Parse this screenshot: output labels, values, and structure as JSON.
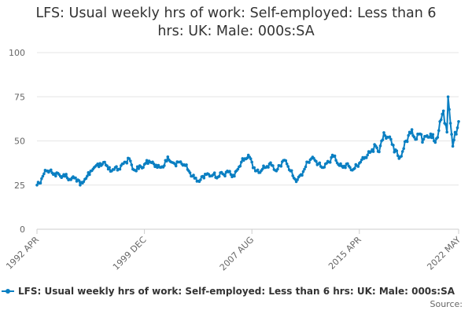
{
  "title_line1": "LFS: Usual weekly hrs of work: Self-employed: Less than 6",
  "title_line2": "hrs: UK: Male: 000s:SA",
  "source_label": "Source:",
  "colors": {
    "series": "#0a7fc2",
    "grid": "#e6e6e6",
    "axis_text": "#666666"
  },
  "chart_data": {
    "type": "line",
    "title": "LFS: Usual weekly hrs of work: Self-employed: Less than 6 hrs: UK: Male: 000s:SA",
    "xlabel": "",
    "ylabel": "",
    "ylim": [
      0,
      100
    ],
    "y_ticks": [
      0,
      25,
      50,
      75,
      100
    ],
    "x_tick_labels": [
      "1992 APR",
      "1999 DEC",
      "2007 AUG",
      "2015 APR",
      "2022 MAY"
    ],
    "grid": true,
    "legend_position": "bottom",
    "series": [
      {
        "name": "LFS: Usual weekly hrs of work: Self-employed: Less than 6 hrs: UK: Male: 000s:SA",
        "x_start": "1992 APR",
        "x_end": "2022 MAY",
        "frequency": "monthly",
        "anchors": [
          [
            "1992 APR",
            25
          ],
          [
            "1992 JUN",
            26
          ],
          [
            "1992 SEP",
            30
          ],
          [
            "1992 DEC",
            33
          ],
          [
            "1993 MAR",
            33
          ],
          [
            "1993 JUN",
            31
          ],
          [
            "1993 SEP",
            32
          ],
          [
            "1993 DEC",
            30
          ],
          [
            "1994 MAR",
            31
          ],
          [
            "1994 JUN",
            29
          ],
          [
            "1994 SEP",
            28
          ],
          [
            "1994 DEC",
            29
          ],
          [
            "1995 MAR",
            28
          ],
          [
            "1995 MAY",
            25
          ],
          [
            "1995 AUG",
            27
          ],
          [
            "1995 NOV",
            30
          ],
          [
            "1996 FEB",
            33
          ],
          [
            "1996 MAY",
            35
          ],
          [
            "1996 AUG",
            37
          ],
          [
            "1996 NOV",
            36
          ],
          [
            "1997 FEB",
            38
          ],
          [
            "1997 MAY",
            34
          ],
          [
            "1997 AUG",
            33
          ],
          [
            "1997 NOV",
            35
          ],
          [
            "1998 FEB",
            34
          ],
          [
            "1998 MAY",
            37
          ],
          [
            "1998 AUG",
            38
          ],
          [
            "1998 NOV",
            40
          ],
          [
            "1999 FEB",
            34
          ],
          [
            "1999 MAY",
            33
          ],
          [
            "1999 AUG",
            36
          ],
          [
            "1999 NOV",
            35
          ],
          [
            "2000 FEB",
            39
          ],
          [
            "2000 MAY",
            38
          ],
          [
            "2000 AUG",
            37
          ],
          [
            "2000 NOV",
            35
          ],
          [
            "2001 FEB",
            35
          ],
          [
            "2001 MAY",
            36
          ],
          [
            "2001 AUG",
            41
          ],
          [
            "2001 NOV",
            38
          ],
          [
            "2002 FEB",
            37
          ],
          [
            "2002 MAY",
            38
          ],
          [
            "2002 AUG",
            37
          ],
          [
            "2002 NOV",
            36
          ],
          [
            "2003 FEB",
            33
          ],
          [
            "2003 MAY",
            30
          ],
          [
            "2003 AUG",
            29
          ],
          [
            "2003 NOV",
            27
          ],
          [
            "2004 FEB",
            30
          ],
          [
            "2004 MAY",
            31
          ],
          [
            "2004 AUG",
            30
          ],
          [
            "2004 NOV",
            31
          ],
          [
            "2005 FEB",
            29
          ],
          [
            "2005 MAY",
            32
          ],
          [
            "2005 AUG",
            31
          ],
          [
            "2005 NOV",
            33
          ],
          [
            "2006 FEB",
            31
          ],
          [
            "2006 MAY",
            30
          ],
          [
            "2006 AUG",
            34
          ],
          [
            "2006 NOV",
            38
          ],
          [
            "2007 FEB",
            40
          ],
          [
            "2007 MAY",
            42
          ],
          [
            "2007 AUG",
            38
          ],
          [
            "2007 NOV",
            33
          ],
          [
            "2008 FEB",
            32
          ],
          [
            "2008 MAY",
            34
          ],
          [
            "2008 AUG",
            35
          ],
          [
            "2008 NOV",
            37
          ],
          [
            "2009 FEB",
            36
          ],
          [
            "2009 MAY",
            33
          ],
          [
            "2009 AUG",
            36
          ],
          [
            "2009 NOV",
            39
          ],
          [
            "2010 FEB",
            37
          ],
          [
            "2010 MAY",
            33
          ],
          [
            "2010 AUG",
            29
          ],
          [
            "2010 NOV",
            28
          ],
          [
            "2011 FEB",
            31
          ],
          [
            "2011 MAY",
            34
          ],
          [
            "2011 AUG",
            38
          ],
          [
            "2011 NOV",
            40
          ],
          [
            "2012 FEB",
            39
          ],
          [
            "2012 MAY",
            37
          ],
          [
            "2012 AUG",
            35
          ],
          [
            "2012 NOV",
            37
          ],
          [
            "2013 FEB",
            38
          ],
          [
            "2013 MAY",
            42
          ],
          [
            "2013 AUG",
            39
          ],
          [
            "2013 NOV",
            36
          ],
          [
            "2014 FEB",
            35
          ],
          [
            "2014 MAY",
            37
          ],
          [
            "2014 AUG",
            35
          ],
          [
            "2014 NOV",
            34
          ],
          [
            "2015 FEB",
            36
          ],
          [
            "2015 MAY",
            38
          ],
          [
            "2015 AUG",
            40
          ],
          [
            "2015 NOV",
            42
          ],
          [
            "2016 FEB",
            44
          ],
          [
            "2016 MAY",
            48
          ],
          [
            "2016 AUG",
            44
          ],
          [
            "2016 NOV",
            50
          ],
          [
            "2017 FEB",
            53
          ],
          [
            "2017 MAY",
            52
          ],
          [
            "2017 AUG",
            48
          ],
          [
            "2017 NOV",
            45
          ],
          [
            "2018 FEB",
            40
          ],
          [
            "2018 MAY",
            44
          ],
          [
            "2018 AUG",
            50
          ],
          [
            "2018 NOV",
            55
          ],
          [
            "2019 FEB",
            53
          ],
          [
            "2019 MAY",
            51
          ],
          [
            "2019 AUG",
            54
          ],
          [
            "2019 NOV",
            51
          ],
          [
            "2020 FEB",
            53
          ],
          [
            "2020 MAY",
            54
          ],
          [
            "2020 AUG",
            50
          ],
          [
            "2020 NOV",
            52
          ],
          [
            "2021 FEB",
            62
          ],
          [
            "2021 APR",
            67
          ],
          [
            "2021 MAY",
            60
          ],
          [
            "2021 JUL",
            55
          ],
          [
            "2021 AUG",
            75
          ],
          [
            "2021 OCT",
            60
          ],
          [
            "2021 DEC",
            47
          ],
          [
            "2022 MAY",
            61
          ]
        ]
      }
    ]
  }
}
